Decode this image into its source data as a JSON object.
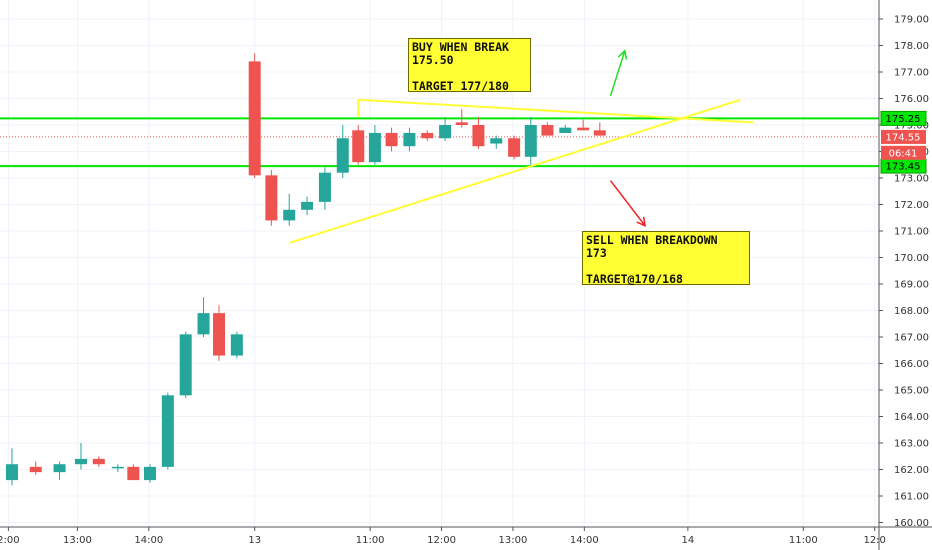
{
  "chart_data": {
    "type": "candlestick",
    "colors": {
      "up": "#26a69a",
      "down": "#ef5350",
      "trendline": "#ffff33",
      "level": "#00e600",
      "arrow_up": "#22dd22",
      "arrow_down": "#ee2222",
      "price_tag": "#ef5350"
    },
    "y_axis": {
      "min": 159.9,
      "max": 179.3,
      "side": "right",
      "ticks": [
        "160.00",
        "161.00",
        "162.00",
        "163.00",
        "164.00",
        "165.00",
        "166.00",
        "167.00",
        "168.00",
        "169.00",
        "170.00",
        "171.00",
        "172.00",
        "173.00",
        "174.00",
        "175.00",
        "176.00",
        "177.00",
        "178.00",
        "179.00"
      ]
    },
    "x_axis": {
      "ticks": [
        {
          "label": "2:00",
          "t": 0.2
        },
        {
          "label": "13:00",
          "t": 6
        },
        {
          "label": "14:00",
          "t": 12
        },
        {
          "label": "13",
          "t": 20.9
        },
        {
          "label": "11:00",
          "t": 30.6
        },
        {
          "label": "12:00",
          "t": 36.6
        },
        {
          "label": "13:00",
          "t": 42.6
        },
        {
          "label": "14:00",
          "t": 48.6
        },
        {
          "label": "14",
          "t": 57.3
        },
        {
          "label": "11:00",
          "t": 67.0
        },
        {
          "label": "12:0",
          "t": 73.0
        }
      ]
    },
    "candles": [
      {
        "t": 0.5,
        "o": 161.6,
        "h": 162.8,
        "l": 161.4,
        "c": 162.2
      },
      {
        "t": 2.5,
        "o": 162.1,
        "h": 162.3,
        "l": 161.8,
        "c": 161.9
      },
      {
        "t": 4.5,
        "o": 161.9,
        "h": 162.3,
        "l": 161.6,
        "c": 162.2
      },
      {
        "t": 6.3,
        "o": 162.2,
        "h": 163.0,
        "l": 162.0,
        "c": 162.4
      },
      {
        "t": 7.8,
        "o": 162.4,
        "h": 162.5,
        "l": 162.1,
        "c": 162.2
      },
      {
        "t": 9.4,
        "o": 162.1,
        "h": 162.2,
        "l": 161.9,
        "c": 162.1
      },
      {
        "t": 10.7,
        "o": 162.1,
        "h": 162.2,
        "l": 161.6,
        "c": 161.6
      },
      {
        "t": 12.1,
        "o": 161.6,
        "h": 162.2,
        "l": 161.5,
        "c": 162.1
      },
      {
        "t": 13.6,
        "o": 162.1,
        "h": 164.9,
        "l": 162.0,
        "c": 164.8
      },
      {
        "t": 15.1,
        "o": 164.8,
        "h": 167.2,
        "l": 164.7,
        "c": 167.1
      },
      {
        "t": 16.6,
        "o": 167.1,
        "h": 168.5,
        "l": 167.0,
        "c": 167.9
      },
      {
        "t": 17.9,
        "o": 167.9,
        "h": 168.2,
        "l": 166.1,
        "c": 166.3
      },
      {
        "t": 19.4,
        "o": 166.3,
        "h": 167.2,
        "l": 166.2,
        "c": 167.1
      },
      {
        "t": 20.9,
        "o": 177.4,
        "h": 177.7,
        "l": 173.0,
        "c": 173.1
      },
      {
        "t": 22.3,
        "o": 173.1,
        "h": 173.3,
        "l": 171.2,
        "c": 171.4
      },
      {
        "t": 23.8,
        "o": 171.4,
        "h": 172.4,
        "l": 171.2,
        "c": 171.8
      },
      {
        "t": 25.3,
        "o": 171.8,
        "h": 172.3,
        "l": 171.6,
        "c": 172.1
      },
      {
        "t": 26.8,
        "o": 172.1,
        "h": 173.4,
        "l": 171.8,
        "c": 173.2
      },
      {
        "t": 28.3,
        "o": 173.2,
        "h": 175.0,
        "l": 173.0,
        "c": 174.5
      },
      {
        "t": 29.6,
        "o": 174.8,
        "h": 175.0,
        "l": 173.5,
        "c": 173.6
      },
      {
        "t": 31.0,
        "o": 173.6,
        "h": 175.0,
        "l": 173.5,
        "c": 174.7
      },
      {
        "t": 32.4,
        "o": 174.7,
        "h": 174.9,
        "l": 174.0,
        "c": 174.2
      },
      {
        "t": 33.9,
        "o": 174.2,
        "h": 174.9,
        "l": 174.0,
        "c": 174.7
      },
      {
        "t": 35.4,
        "o": 174.7,
        "h": 174.8,
        "l": 174.4,
        "c": 174.5
      },
      {
        "t": 36.9,
        "o": 174.5,
        "h": 175.3,
        "l": 174.4,
        "c": 175.0
      },
      {
        "t": 38.3,
        "o": 175.1,
        "h": 175.6,
        "l": 174.9,
        "c": 175.0
      },
      {
        "t": 39.7,
        "o": 175.0,
        "h": 175.3,
        "l": 174.1,
        "c": 174.2
      },
      {
        "t": 41.2,
        "o": 174.3,
        "h": 174.6,
        "l": 174.1,
        "c": 174.5
      },
      {
        "t": 42.7,
        "o": 174.5,
        "h": 174.6,
        "l": 173.7,
        "c": 173.8
      },
      {
        "t": 44.1,
        "o": 173.8,
        "h": 175.3,
        "l": 173.4,
        "c": 175.0
      },
      {
        "t": 45.5,
        "o": 175.0,
        "h": 175.1,
        "l": 174.6,
        "c": 174.6
      },
      {
        "t": 47.0,
        "o": 174.7,
        "h": 175.0,
        "l": 174.7,
        "c": 174.9
      },
      {
        "t": 48.5,
        "o": 174.9,
        "h": 175.2,
        "l": 174.8,
        "c": 174.8
      },
      {
        "t": 49.9,
        "o": 174.8,
        "h": 175.1,
        "l": 174.6,
        "c": 174.6
      }
    ],
    "horizontal_levels": [
      {
        "value": 175.25,
        "label": "175.25"
      },
      {
        "value": 173.45,
        "label": "173.45"
      }
    ],
    "price_tags": [
      {
        "value": 174.55,
        "label": "174.55"
      },
      {
        "value": 173.95,
        "label": "06:41"
      }
    ],
    "trendlines": [
      {
        "from": {
          "t": 29.6,
          "p": 175.95
        },
        "to": {
          "t": 62.8,
          "p": 175.1
        }
      },
      {
        "from": {
          "t": 23.8,
          "p": 170.55
        },
        "to": {
          "t": 61.7,
          "p": 175.95
        }
      },
      {
        "from": {
          "t": 29.6,
          "p": 175.95
        },
        "to": {
          "t": 29.6,
          "p": 175.3
        }
      }
    ],
    "arrows": [
      {
        "kind": "up",
        "from": {
          "t": 50.8,
          "p": 176.1
        },
        "to": {
          "t": 52.0,
          "p": 177.8
        }
      },
      {
        "kind": "down",
        "from": {
          "t": 50.8,
          "p": 172.9
        },
        "to": {
          "t": 53.7,
          "p": 171.2
        }
      }
    ],
    "annotations": {
      "buy": {
        "lines": [
          "BUY WHEN BREAK",
          "175.50",
          "",
          "TARGET 177/180"
        ]
      },
      "sell": {
        "lines": [
          "SELL WHEN BREAKDOWN",
          "173",
          "",
          "TARGET@170/168"
        ]
      }
    }
  }
}
